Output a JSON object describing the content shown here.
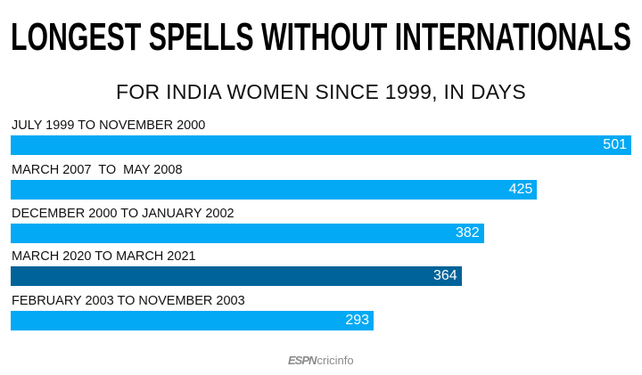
{
  "chart_data": {
    "type": "bar",
    "orientation": "horizontal",
    "title": "LONGEST SPELLS WITHOUT INTERNATIONALS",
    "subtitle": "FOR INDIA WOMEN SINCE 1999, IN DAYS",
    "categories": [
      "JULY 1999 TO NOVEMBER 2000",
      "MARCH 2007  TO  MAY 2008",
      "DECEMBER 2000 TO JANUARY 2002",
      "MARCH 2020 TO MARCH 2021",
      "FEBRUARY 2003 TO NOVEMBER 2003"
    ],
    "values": [
      501,
      425,
      382,
      364,
      293
    ],
    "value_labels": [
      "501",
      "425",
      "382",
      "364",
      "293"
    ],
    "colors": [
      "#03a9f4",
      "#03a9f4",
      "#03a9f4",
      "#006399",
      "#03a9f4"
    ],
    "xlim": [
      0,
      501
    ],
    "grid": false
  },
  "logo": {
    "espn": "ESPN",
    "cricinfo": "cricinfo"
  }
}
